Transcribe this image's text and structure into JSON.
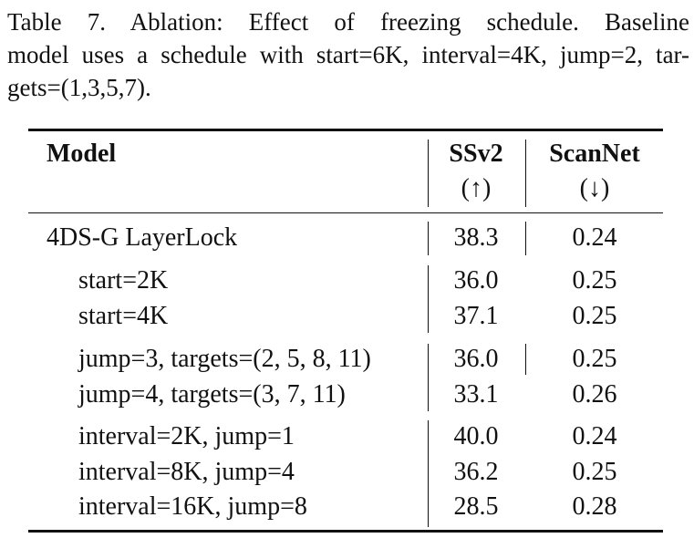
{
  "caption": {
    "line1": "Table 7.   Ablation:  Effect  of  freezing  schedule.   Baseline",
    "line2": "model uses a schedule with start=6K, interval=4K, jump=2, tar-",
    "line3": "gets=(1,3,5,7)."
  },
  "table": {
    "headers": {
      "model": "Model",
      "ssv2": "SSv2",
      "ssv2_arrow": "(↑)",
      "scannet": "ScanNet",
      "scannet_arrow": "(↓)"
    },
    "rows": [
      {
        "model": "4DS-G LayerLock",
        "ssv2": "38.3",
        "scannet": "0.24"
      },
      {
        "model": "start=2K",
        "ssv2": "36.0",
        "scannet": "0.25"
      },
      {
        "model": "start=4K",
        "ssv2": "37.1",
        "scannet": "0.25"
      },
      {
        "model": "jump=3, targets=(2, 5, 8, 11)",
        "ssv2": "36.0",
        "scannet": "0.25"
      },
      {
        "model": "jump=4, targets=(3, 7, 11)",
        "ssv2": "33.1",
        "scannet": "0.26"
      },
      {
        "model": "interval=2K, jump=1",
        "ssv2": "40.0",
        "scannet": "0.24"
      },
      {
        "model": "interval=8K, jump=4",
        "ssv2": "36.2",
        "scannet": "0.25"
      },
      {
        "model": "interval=16K, jump=8",
        "ssv2": "28.5",
        "scannet": "0.28"
      }
    ]
  }
}
